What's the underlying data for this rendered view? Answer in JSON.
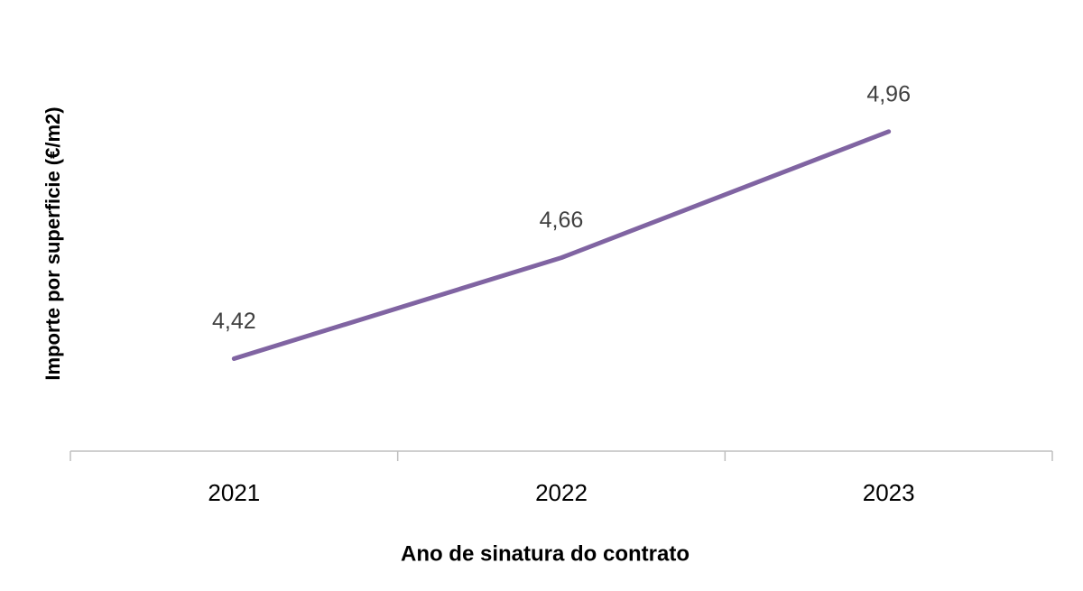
{
  "chart_data": {
    "type": "line",
    "x_label": "Ano de sinatura do contrato",
    "y_label": "Importe por superficie (€/m2)",
    "categories": [
      "2021",
      "2022",
      "2023"
    ],
    "values": [
      4.42,
      4.66,
      4.96
    ],
    "value_labels": [
      "4,42",
      "4,66",
      "4,96"
    ],
    "color": "#8064a2",
    "ylim": [
      4.2,
      5.2
    ]
  }
}
